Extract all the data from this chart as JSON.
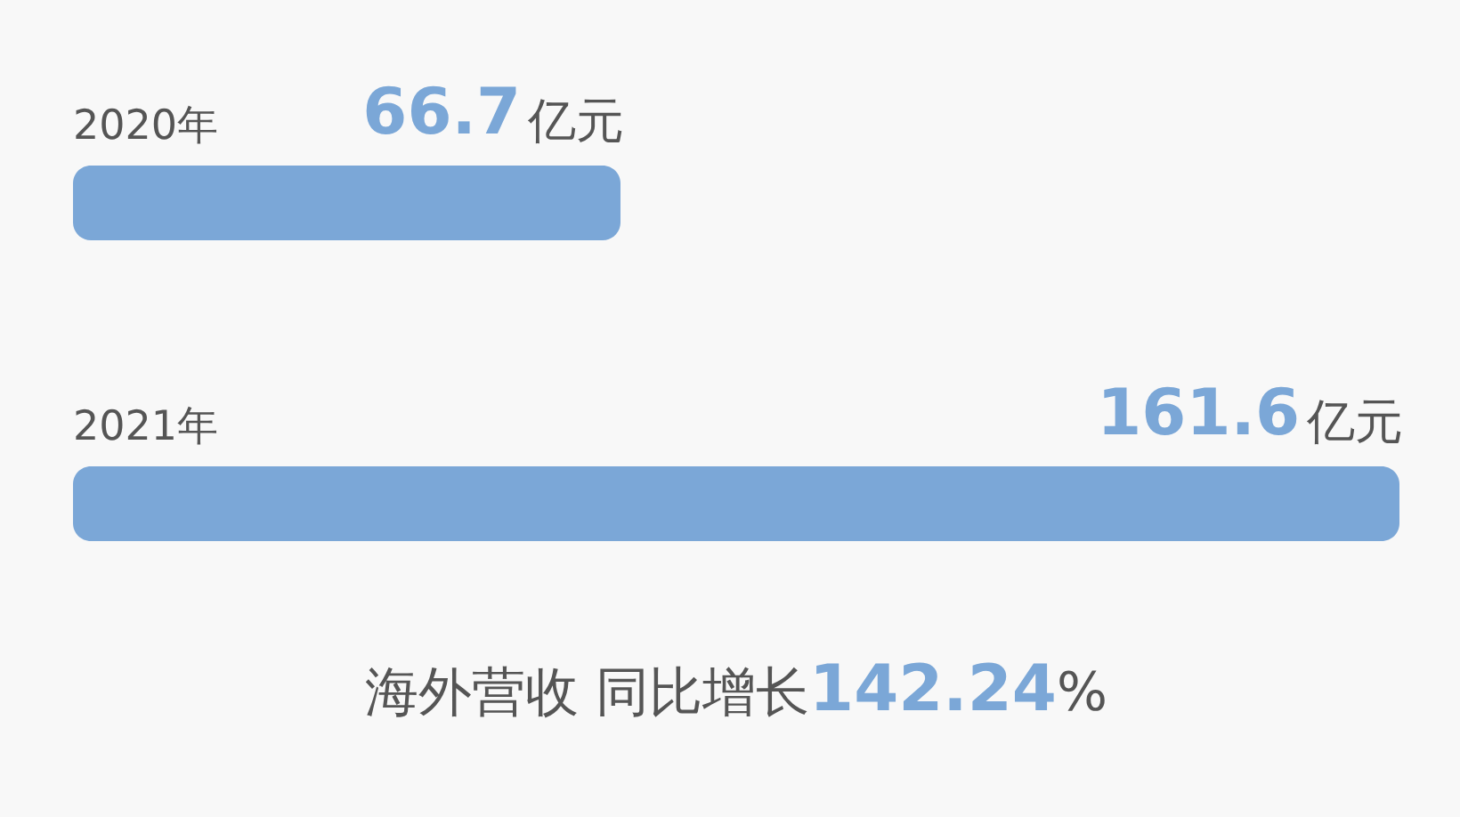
{
  "chart_data": {
    "type": "bar",
    "orientation": "horizontal",
    "tick_labels": "y",
    "categories": [
      "2020年",
      "2021年"
    ],
    "values": [
      66.7,
      161.6
    ],
    "color": "#7ba7d7",
    "value_labels": [
      "66.7亿元",
      "161.6亿元"
    ],
    "annotations": [
      "海外营收 同比增长142.24%"
    ]
  }
}
